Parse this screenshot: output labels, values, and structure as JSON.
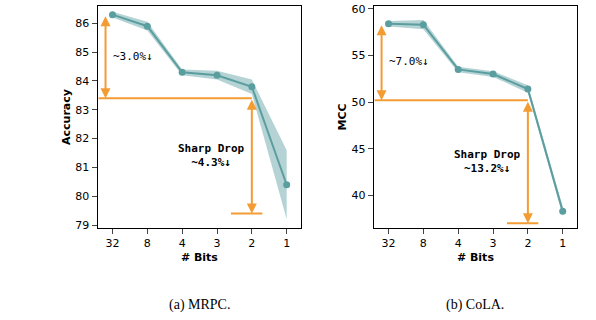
{
  "chart_data": [
    {
      "type": "line",
      "caption": "(a) MRPC.",
      "x_label": "# Bits",
      "y_label": "Accuracy",
      "categories": [
        "32",
        "8",
        "4",
        "3",
        "2",
        "1"
      ],
      "values": [
        86.3,
        85.9,
        84.3,
        84.2,
        83.8,
        80.4
      ],
      "error": [
        0.1,
        0.15,
        0.1,
        0.15,
        0.25,
        1.2
      ],
      "color": "#5b9ea0",
      "marker": "circle",
      "ylim": [
        78.9,
        86.6
      ],
      "yticks": [
        79,
        80,
        81,
        82,
        83,
        84,
        85,
        86
      ],
      "grid": false,
      "annotations": [
        {
          "text": [
            "~3.0%↓"
          ],
          "from": 86.3,
          "to": 83.4
        },
        {
          "text": [
            "Sharp Drop",
            "~4.3%↓"
          ],
          "from": 83.4,
          "to": 79.4
        }
      ]
    },
    {
      "type": "line",
      "caption": "(b) CoLA.",
      "x_label": "# Bits",
      "y_label": "MCC",
      "categories": [
        "32",
        "8",
        "4",
        "3",
        "2",
        "1"
      ],
      "values": [
        58.4,
        58.3,
        53.5,
        53.0,
        51.4,
        38.3
      ],
      "error": [
        0.3,
        0.5,
        0.3,
        0.3,
        0.4,
        0.5
      ],
      "color": "#5b9ea0",
      "marker": "circle",
      "ylim": [
        36.5,
        60.3
      ],
      "yticks": [
        40,
        45,
        50,
        55,
        60
      ],
      "grid": false,
      "annotations": [
        {
          "text": [
            "~7.0%↓"
          ],
          "from": 58.4,
          "to": 50.2
        },
        {
          "text": [
            "Sharp Drop",
            "~13.2%↓"
          ],
          "from": 50.2,
          "to": 37.0
        }
      ]
    }
  ]
}
